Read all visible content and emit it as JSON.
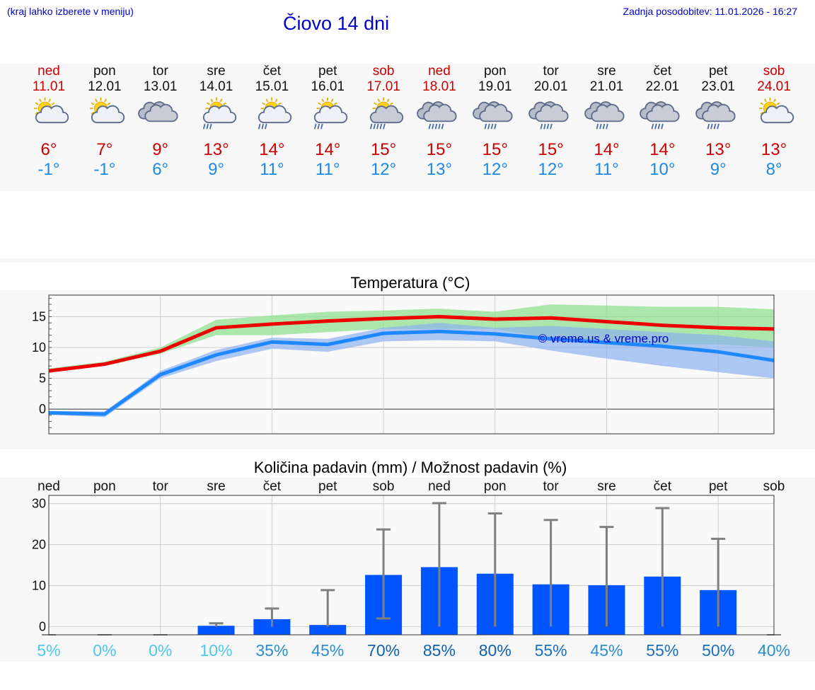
{
  "header": {
    "hint": "(kraj lahko izberete v meniju)",
    "title": "Čiovo 14 dni",
    "updated": "Zadnja posodobitev: 11.01.2026 - 16:27"
  },
  "colors": {
    "max": "#ee0000",
    "min": "#1e88ff",
    "bar": "#0055ff",
    "whisker": "#808080",
    "band_max": "#90e090",
    "band_min": "#8fb0f0"
  },
  "days": [
    {
      "name": "ned",
      "date": "11.01",
      "weekend": true,
      "icon": "sun-cloud-icon",
      "tmax": "6°",
      "tmin": "-1°"
    },
    {
      "name": "pon",
      "date": "12.01",
      "weekend": false,
      "icon": "sun-cloud-icon",
      "tmax": "7°",
      "tmin": "-1°"
    },
    {
      "name": "tor",
      "date": "13.01",
      "weekend": false,
      "icon": "cloud-icon",
      "tmax": "9°",
      "tmin": "6°"
    },
    {
      "name": "sre",
      "date": "14.01",
      "weekend": false,
      "icon": "sun-cloud-rain-icon",
      "tmax": "13°",
      "tmin": "9°"
    },
    {
      "name": "čet",
      "date": "15.01",
      "weekend": false,
      "icon": "sun-cloud-rain-icon",
      "tmax": "14°",
      "tmin": "11°"
    },
    {
      "name": "pet",
      "date": "16.01",
      "weekend": false,
      "icon": "sun-cloud-rain-icon",
      "tmax": "14°",
      "tmin": "11°"
    },
    {
      "name": "sob",
      "date": "17.01",
      "weekend": true,
      "icon": "sun-cloud-heavy-rain-icon",
      "tmax": "15°",
      "tmin": "12°"
    },
    {
      "name": "ned",
      "date": "18.01",
      "weekend": true,
      "icon": "cloud-heavy-rain-icon",
      "tmax": "15°",
      "tmin": "13°"
    },
    {
      "name": "pon",
      "date": "19.01",
      "weekend": false,
      "icon": "cloud-rain-icon",
      "tmax": "15°",
      "tmin": "12°"
    },
    {
      "name": "tor",
      "date": "20.01",
      "weekend": false,
      "icon": "cloud-rain-icon",
      "tmax": "15°",
      "tmin": "12°"
    },
    {
      "name": "sre",
      "date": "21.01",
      "weekend": false,
      "icon": "cloud-rain-icon",
      "tmax": "14°",
      "tmin": "11°"
    },
    {
      "name": "čet",
      "date": "22.01",
      "weekend": false,
      "icon": "cloud-rain-icon",
      "tmax": "14°",
      "tmin": "10°"
    },
    {
      "name": "pet",
      "date": "23.01",
      "weekend": false,
      "icon": "cloud-rain-icon",
      "tmax": "13°",
      "tmin": "9°"
    },
    {
      "name": "sob",
      "date": "24.01",
      "weekend": true,
      "icon": "sun-cloud-icon",
      "tmax": "13°",
      "tmin": "8°"
    }
  ],
  "chart_data": [
    {
      "type": "line",
      "title": "Temperatura (°C)",
      "watermark": "© vreme.us & vreme.pro",
      "x": [
        "ned",
        "pon",
        "tor",
        "sre",
        "čet",
        "pet",
        "sob",
        "ned",
        "pon",
        "tor",
        "sre",
        "čet",
        "pet",
        "sob"
      ],
      "ylim": [
        -4,
        18.5
      ],
      "yticks": [
        0,
        5,
        10,
        15
      ],
      "series": [
        {
          "name": "max",
          "values": [
            6.2,
            7.3,
            9.4,
            13.2,
            13.8,
            14.3,
            14.7,
            15.0,
            14.6,
            14.8,
            14.2,
            13.6,
            13.2,
            13.0
          ],
          "band_low": [
            6.0,
            7.0,
            9.0,
            12.0,
            12.0,
            12.5,
            13.0,
            13.0,
            13.0,
            11.5,
            11.0,
            10.5,
            10.5,
            10.0
          ],
          "band_high": [
            6.6,
            7.7,
            10.0,
            14.5,
            15.2,
            15.8,
            16.0,
            16.3,
            15.8,
            17.0,
            16.8,
            16.6,
            16.6,
            16.2
          ]
        },
        {
          "name": "min",
          "values": [
            -0.6,
            -0.8,
            5.6,
            8.8,
            10.9,
            10.5,
            12.3,
            12.6,
            12.2,
            11.4,
            10.8,
            10.2,
            9.3,
            7.9
          ],
          "band_low": [
            -0.9,
            -1.3,
            5.0,
            7.8,
            9.8,
            9.3,
            11.0,
            11.2,
            11.0,
            9.5,
            8.2,
            7.0,
            6.0,
            5.0
          ],
          "band_high": [
            -0.3,
            -0.4,
            6.2,
            9.6,
            11.6,
            11.4,
            13.2,
            14.0,
            13.2,
            13.5,
            13.0,
            12.5,
            12.0,
            11.0
          ]
        }
      ]
    },
    {
      "type": "bar",
      "title": "Količina padavin (mm) / Možnost padavin (%)",
      "categories": [
        "ned",
        "pon",
        "tor",
        "sre",
        "čet",
        "pet",
        "sob",
        "ned",
        "pon",
        "tor",
        "sre",
        "čet",
        "pet",
        "sob"
      ],
      "ylim": [
        -2,
        32
      ],
      "yticks": [
        0,
        10,
        20,
        30
      ],
      "values": [
        0,
        0,
        0,
        0.2,
        1.8,
        0.4,
        12.6,
        14.5,
        12.9,
        10.3,
        10.1,
        12.2,
        8.9,
        0
      ],
      "whisker_low": [
        0,
        0,
        0,
        0,
        0,
        0,
        2,
        0,
        0,
        0,
        0,
        0,
        0,
        0
      ],
      "whisker_high": [
        0,
        0,
        0,
        0.8,
        4.4,
        8.9,
        23.7,
        30.1,
        27.6,
        26.0,
        24.3,
        28.9,
        21.4,
        0
      ],
      "chance": [
        "5%",
        "0%",
        "0%",
        "10%",
        "35%",
        "45%",
        "70%",
        "85%",
        "80%",
        "55%",
        "45%",
        "55%",
        "50%",
        "40%"
      ]
    }
  ]
}
